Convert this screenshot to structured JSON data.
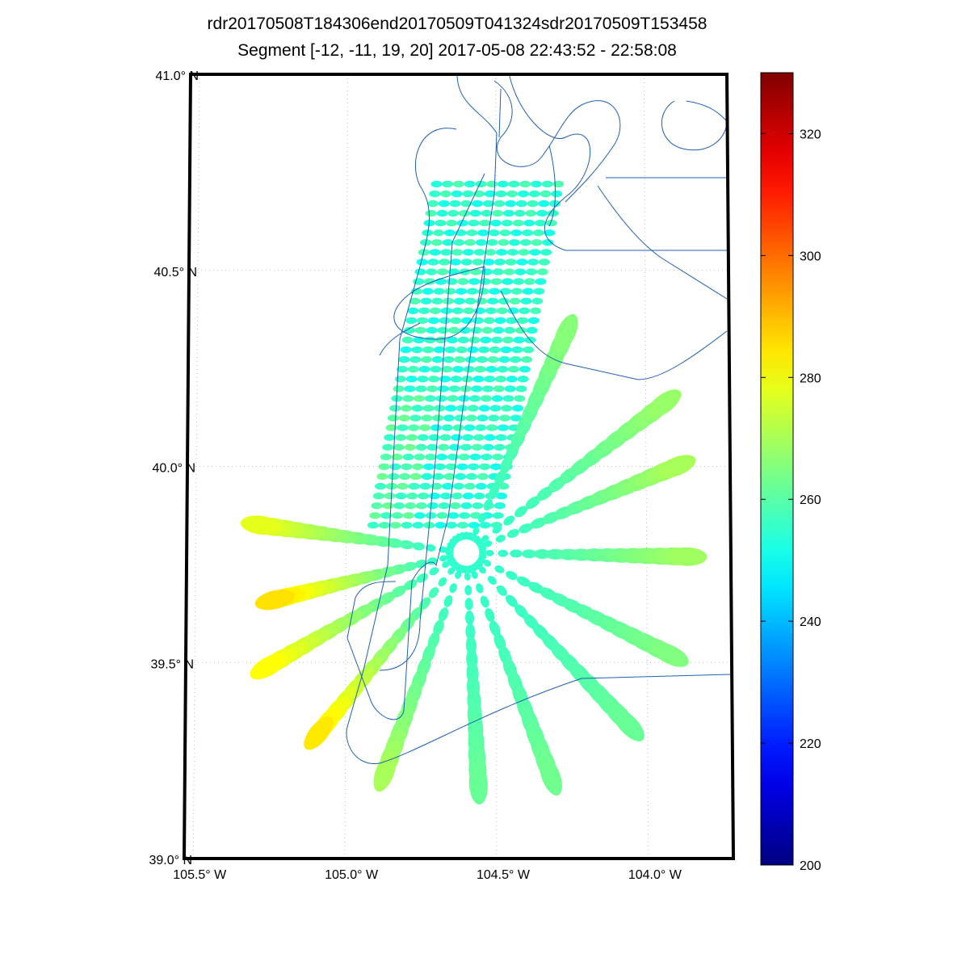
{
  "chart_data": {
    "type": "scatter",
    "title": "rdr20170508T184306end20170509T041324sdr20170509T153458",
    "subtitle": "Segment [-12, -11, 19, 20] 2017-05-08 22:43:52 - 22:58:08",
    "xlabel": "",
    "ylabel": "",
    "x_ticks": [
      {
        "value": -105.5,
        "label": "105.5° W"
      },
      {
        "value": -105.0,
        "label": "105.0° W"
      },
      {
        "value": -104.5,
        "label": "104.5° W"
      },
      {
        "value": -104.0,
        "label": "104.0° W"
      }
    ],
    "y_ticks": [
      {
        "value": 39.0,
        "label": "39.0° N"
      },
      {
        "value": 39.5,
        "label": "39.5° N"
      },
      {
        "value": 40.0,
        "label": "40.0° N"
      },
      {
        "value": 40.5,
        "label": "40.5° N"
      },
      {
        "value": 41.0,
        "label": "41.0° N"
      }
    ],
    "xlim": [
      -105.53,
      -103.72
    ],
    "ylim": [
      39.0,
      41.0
    ],
    "grid": true,
    "colorbar": {
      "range": [
        200,
        330
      ],
      "colormap": "jet",
      "ticks": [
        200,
        220,
        240,
        260,
        280,
        300,
        320
      ]
    },
    "scan_grid": {
      "rows": 36,
      "lat_range": [
        39.85,
        40.72
      ],
      "west_edge_lon": [
        -104.91,
        -104.7
      ],
      "east_edge_lon": [
        -104.5,
        -104.29
      ],
      "columns": 12,
      "value": 255
    },
    "radial_arms": [
      {
        "end_lon": -105.29,
        "end_lat": 39.85,
        "value": 278
      },
      {
        "end_lon": -105.24,
        "end_lat": 39.66,
        "value": 285
      },
      {
        "end_lon": -105.26,
        "end_lat": 39.49,
        "value": 281
      },
      {
        "end_lon": -105.09,
        "end_lat": 39.32,
        "value": 284
      },
      {
        "end_lon": -104.87,
        "end_lat": 39.22,
        "value": 270
      },
      {
        "end_lon": -104.56,
        "end_lat": 39.19,
        "value": 262
      },
      {
        "end_lon": -104.32,
        "end_lat": 39.21,
        "value": 263
      },
      {
        "end_lon": -104.06,
        "end_lat": 39.34,
        "value": 262
      },
      {
        "end_lon": -103.92,
        "end_lat": 39.52,
        "value": 265
      },
      {
        "end_lon": -103.86,
        "end_lat": 39.77,
        "value": 269
      },
      {
        "end_lon": -103.89,
        "end_lat": 40.0,
        "value": 270
      },
      {
        "end_lon": -103.93,
        "end_lat": 40.16,
        "value": 268
      },
      {
        "end_lon": -104.26,
        "end_lat": 40.34,
        "value": 266
      }
    ],
    "radial_center": {
      "lon": -104.6,
      "lat": 39.78,
      "radius_deg": 0.07,
      "value": 255
    },
    "flight_track_color": "#1f5fb4"
  }
}
